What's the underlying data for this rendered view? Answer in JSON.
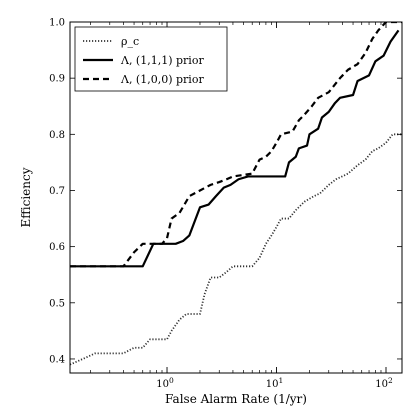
{
  "chart_data": {
    "type": "line",
    "title": "",
    "xlabel": "False Alarm Rate (1/yr)",
    "ylabel": "Efficiency",
    "xscale": "log",
    "xlim": [
      0.13,
      140
    ],
    "ylim": [
      0.375,
      1.0
    ],
    "x_ticks": [
      {
        "value": 1,
        "label": "10^0"
      },
      {
        "value": 10,
        "label": "10^1"
      },
      {
        "value": 100,
        "label": "10^2"
      }
    ],
    "y_ticks": [
      0.4,
      0.5,
      0.6,
      0.7,
      0.8,
      0.9,
      1.0
    ],
    "y_tick_labels": [
      "0.4",
      "0.5",
      "0.6",
      "0.7",
      "0.8",
      "0.9",
      "1.0"
    ],
    "grid": false,
    "legend_position": "top-left",
    "series": [
      {
        "name": "ρ_c",
        "style": "dotted",
        "color": "#333333",
        "points": [
          [
            0.13,
            0.39
          ],
          [
            0.17,
            0.4
          ],
          [
            0.22,
            0.41
          ],
          [
            0.4,
            0.41
          ],
          [
            0.5,
            0.42
          ],
          [
            0.6,
            0.42
          ],
          [
            0.7,
            0.435
          ],
          [
            1.0,
            0.435
          ],
          [
            1.1,
            0.45
          ],
          [
            1.3,
            0.47
          ],
          [
            1.5,
            0.48
          ],
          [
            2.0,
            0.48
          ],
          [
            2.2,
            0.515
          ],
          [
            2.5,
            0.545
          ],
          [
            3.0,
            0.545
          ],
          [
            3.5,
            0.555
          ],
          [
            4.0,
            0.565
          ],
          [
            6.0,
            0.565
          ],
          [
            7.0,
            0.58
          ],
          [
            8.0,
            0.605
          ],
          [
            9.0,
            0.62
          ],
          [
            10.0,
            0.635
          ],
          [
            11.0,
            0.65
          ],
          [
            13.0,
            0.65
          ],
          [
            15.0,
            0.665
          ],
          [
            18.0,
            0.68
          ],
          [
            22.0,
            0.69
          ],
          [
            25.0,
            0.695
          ],
          [
            30.0,
            0.71
          ],
          [
            35.0,
            0.72
          ],
          [
            45.0,
            0.73
          ],
          [
            55.0,
            0.745
          ],
          [
            65.0,
            0.755
          ],
          [
            75.0,
            0.77
          ],
          [
            85.0,
            0.775
          ],
          [
            100.0,
            0.785
          ],
          [
            115.0,
            0.8
          ],
          [
            140.0,
            0.8
          ]
        ]
      },
      {
        "name": "Λ, (1,1,1) prior",
        "style": "solid",
        "color": "#000000",
        "points": [
          [
            0.13,
            0.565
          ],
          [
            0.6,
            0.565
          ],
          [
            0.75,
            0.605
          ],
          [
            1.2,
            0.605
          ],
          [
            1.4,
            0.61
          ],
          [
            1.6,
            0.62
          ],
          [
            2.0,
            0.67
          ],
          [
            2.4,
            0.675
          ],
          [
            2.8,
            0.69
          ],
          [
            3.3,
            0.705
          ],
          [
            3.8,
            0.71
          ],
          [
            4.5,
            0.72
          ],
          [
            5.5,
            0.725
          ],
          [
            12.0,
            0.725
          ],
          [
            13.0,
            0.75
          ],
          [
            15.0,
            0.76
          ],
          [
            16.0,
            0.775
          ],
          [
            19.0,
            0.78
          ],
          [
            20.0,
            0.8
          ],
          [
            24.0,
            0.81
          ],
          [
            26.0,
            0.83
          ],
          [
            30.0,
            0.84
          ],
          [
            34.0,
            0.855
          ],
          [
            38.0,
            0.865
          ],
          [
            50.0,
            0.87
          ],
          [
            55.0,
            0.895
          ],
          [
            70.0,
            0.905
          ],
          [
            80.0,
            0.93
          ],
          [
            95.0,
            0.94
          ],
          [
            110.0,
            0.965
          ],
          [
            130.0,
            0.985
          ]
        ]
      },
      {
        "name": "Λ, (1,0,0) prior",
        "style": "dashed",
        "color": "#000000",
        "points": [
          [
            0.13,
            0.565
          ],
          [
            0.4,
            0.565
          ],
          [
            0.5,
            0.59
          ],
          [
            0.6,
            0.605
          ],
          [
            0.9,
            0.605
          ],
          [
            1.0,
            0.615
          ],
          [
            1.1,
            0.65
          ],
          [
            1.3,
            0.66
          ],
          [
            1.6,
            0.69
          ],
          [
            2.0,
            0.7
          ],
          [
            2.5,
            0.71
          ],
          [
            3.0,
            0.715
          ],
          [
            3.5,
            0.72
          ],
          [
            4.0,
            0.725
          ],
          [
            6.0,
            0.73
          ],
          [
            7.0,
            0.755
          ],
          [
            8.0,
            0.76
          ],
          [
            9.0,
            0.77
          ],
          [
            10.0,
            0.785
          ],
          [
            11.0,
            0.8
          ],
          [
            14.0,
            0.805
          ],
          [
            16.0,
            0.825
          ],
          [
            18.0,
            0.835
          ],
          [
            21.0,
            0.85
          ],
          [
            24.0,
            0.865
          ],
          [
            30.0,
            0.875
          ],
          [
            38.0,
            0.9
          ],
          [
            45.0,
            0.915
          ],
          [
            55.0,
            0.925
          ],
          [
            65.0,
            0.945
          ],
          [
            75.0,
            0.97
          ],
          [
            85.0,
            0.985
          ],
          [
            100.0,
            1.0
          ],
          [
            140.0,
            1.0
          ]
        ]
      }
    ]
  }
}
